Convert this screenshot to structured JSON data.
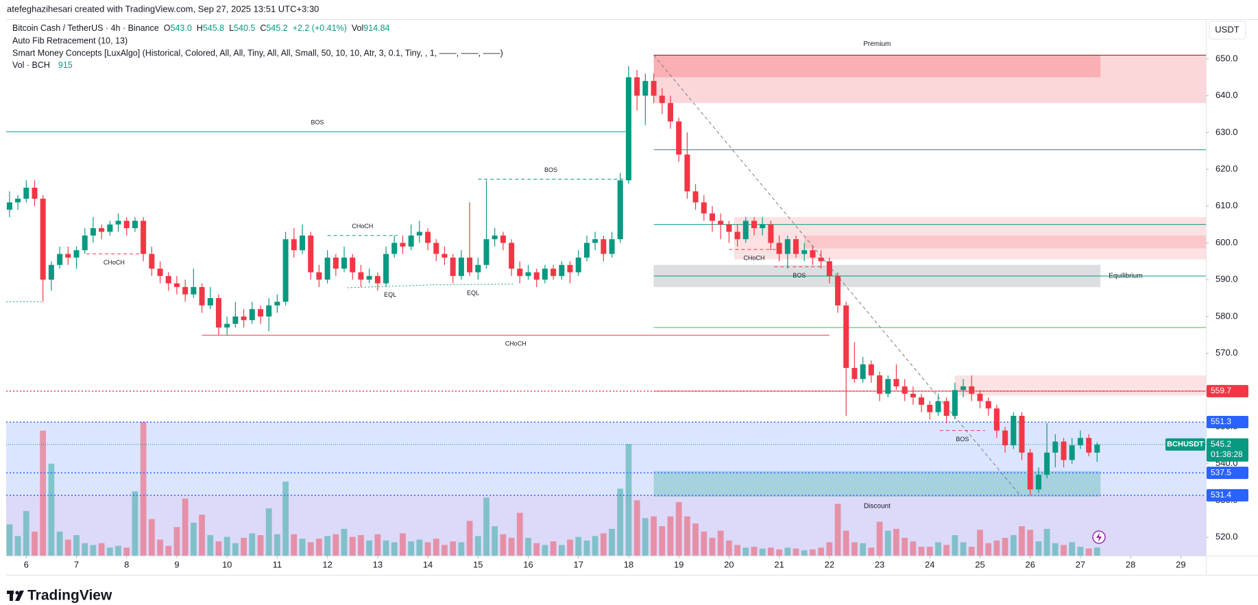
{
  "page": {
    "author_line": "atefeghazihesari created with TradingView.com, Sep 27, 2025 13:51 UTC+3:30",
    "logo": "TradingView"
  },
  "chart_data": {
    "type": "candlestick",
    "title": "Bitcoin Cash / TetherUS · 4h · Binance",
    "legend": [
      {
        "key": "O",
        "value": "543.0"
      },
      {
        "key": "H",
        "value": "545.8"
      },
      {
        "key": "L",
        "value": "540.5"
      },
      {
        "key": "C",
        "value": "545.2"
      }
    ],
    "change": "+2.2 (+0.41%)",
    "vol_legend": {
      "key": "Vol",
      "value": "914.84"
    },
    "indicators": [
      "Auto Fib Retracement (10, 13)",
      "Smart Money Concepts [LuxAlgo] (Historical, Colored, All, All, Tiny, All, All, Small, 50, 10, 10, Atr, 3, 0.1, Tiny, , 1, ——, ——, ——)"
    ],
    "volume_label": "Vol · BCH",
    "volume_value": "915",
    "currency": "USDT",
    "up_color": "#089981",
    "down_color": "#f23645",
    "up_volume_color": "rgba(38,166,154,0.5)",
    "down_volume_color": "rgba(242,54,69,0.45)",
    "xlim": [
      5.6,
      29.5
    ],
    "xticks": [
      6,
      7,
      8,
      9,
      10,
      11,
      12,
      13,
      14,
      15,
      16,
      17,
      18,
      19,
      20,
      21,
      22,
      23,
      24,
      25,
      26,
      27,
      28,
      29
    ],
    "ylim": [
      515,
      660.6
    ],
    "yticks": [
      {
        "value": 520,
        "label": "520.0"
      },
      {
        "value": 530,
        "label": "530.0"
      },
      {
        "value": 540,
        "label": "540.0"
      },
      {
        "value": 550,
        "label": "550.0"
      },
      {
        "value": 560,
        "label": "560.0"
      },
      {
        "value": 570,
        "label": "570.0"
      },
      {
        "value": 580,
        "label": "580.0"
      },
      {
        "value": 590,
        "label": "590.0"
      },
      {
        "value": 600,
        "label": "600.0"
      },
      {
        "value": 610,
        "label": "610.0"
      },
      {
        "value": 620,
        "label": "620.0"
      },
      {
        "value": 630,
        "label": "630.0"
      },
      {
        "value": 640,
        "label": "640.0"
      },
      {
        "value": 650,
        "label": "650.0"
      }
    ],
    "x": [
      5.667,
      5.833,
      6,
      6.167,
      6.333,
      6.5,
      6.667,
      6.833,
      7,
      7.167,
      7.333,
      7.5,
      7.667,
      7.833,
      8,
      8.167,
      8.333,
      8.5,
      8.667,
      8.833,
      9,
      9.167,
      9.333,
      9.5,
      9.667,
      9.833,
      10,
      10.167,
      10.333,
      10.5,
      10.667,
      10.833,
      11,
      11.167,
      11.333,
      11.5,
      11.667,
      11.833,
      12,
      12.167,
      12.333,
      12.5,
      12.667,
      12.833,
      13,
      13.167,
      13.333,
      13.5,
      13.667,
      13.833,
      14,
      14.167,
      14.333,
      14.5,
      14.667,
      14.833,
      15,
      15.167,
      15.333,
      15.5,
      15.667,
      15.833,
      16,
      16.167,
      16.333,
      16.5,
      16.667,
      16.833,
      17,
      17.167,
      17.333,
      17.5,
      17.667,
      17.833,
      18,
      18.167,
      18.333,
      18.5,
      18.667,
      18.833,
      19,
      19.167,
      19.333,
      19.5,
      19.667,
      19.833,
      20,
      20.167,
      20.333,
      20.5,
      20.667,
      20.833,
      21,
      21.167,
      21.333,
      21.5,
      21.667,
      21.833,
      22,
      22.167,
      22.333,
      22.5,
      22.667,
      22.833,
      23,
      23.167,
      23.333,
      23.5,
      23.667,
      23.833,
      24,
      24.167,
      24.333,
      24.5,
      24.667,
      24.833,
      25,
      25.167,
      25.333,
      25.5,
      25.667,
      25.833,
      26,
      26.167,
      26.333,
      26.5,
      26.667,
      26.833,
      27,
      27.167,
      27.333
    ],
    "ohlc": [
      [
        609,
        614,
        607,
        611
      ],
      [
        611,
        613,
        609,
        612
      ],
      [
        612,
        617,
        611,
        615
      ],
      [
        615,
        617,
        610,
        612
      ],
      [
        612,
        613,
        584,
        590
      ],
      [
        590,
        595,
        587,
        594
      ],
      [
        594,
        599,
        593,
        597
      ],
      [
        597,
        599,
        594,
        596
      ],
      [
        596,
        599,
        593,
        598
      ],
      [
        598,
        604,
        597,
        602
      ],
      [
        602,
        607,
        600,
        604
      ],
      [
        604,
        605,
        601,
        603
      ],
      [
        603,
        606,
        602,
        605
      ],
      [
        605,
        608,
        603,
        606
      ],
      [
        606,
        607,
        602,
        604
      ],
      [
        604,
        607,
        603,
        606
      ],
      [
        606,
        607,
        595,
        597
      ],
      [
        597,
        599,
        591,
        593
      ],
      [
        593,
        595,
        589,
        591
      ],
      [
        591,
        592,
        587,
        589
      ],
      [
        589,
        591,
        586,
        588
      ],
      [
        588,
        590,
        584,
        586
      ],
      [
        586,
        593,
        585,
        588
      ],
      [
        588,
        589,
        581,
        583
      ],
      [
        583,
        588,
        582,
        585
      ],
      [
        585,
        586,
        575,
        577
      ],
      [
        577,
        580,
        575,
        578
      ],
      [
        578,
        584,
        577,
        580
      ],
      [
        580,
        582,
        577,
        579
      ],
      [
        579,
        584,
        578,
        582
      ],
      [
        582,
        583,
        578,
        580
      ],
      [
        580,
        585,
        576,
        583
      ],
      [
        583,
        586,
        581,
        584
      ],
      [
        584,
        603,
        583,
        601
      ],
      [
        601,
        604,
        596,
        598
      ],
      [
        598,
        605,
        597,
        602
      ],
      [
        602,
        603,
        590,
        592
      ],
      [
        592,
        594,
        588,
        590
      ],
      [
        590,
        598,
        589,
        596
      ],
      [
        596,
        597,
        591,
        593
      ],
      [
        593,
        599,
        592,
        596
      ],
      [
        596,
        597,
        590,
        592
      ],
      [
        592,
        594,
        588,
        590
      ],
      [
        590,
        593,
        589,
        591
      ],
      [
        591,
        592,
        587,
        589
      ],
      [
        589,
        599,
        588,
        597
      ],
      [
        597,
        602,
        596,
        600
      ],
      [
        600,
        602,
        597,
        599
      ],
      [
        599,
        605,
        598,
        602
      ],
      [
        602,
        606,
        600,
        603
      ],
      [
        603,
        604,
        598,
        600
      ],
      [
        600,
        601,
        595,
        597
      ],
      [
        597,
        599,
        594,
        596
      ],
      [
        596,
        597,
        589,
        591
      ],
      [
        591,
        598,
        590,
        596
      ],
      [
        596,
        611,
        591,
        592
      ],
      [
        592,
        596,
        590,
        594
      ],
      [
        594,
        617,
        593,
        601
      ],
      [
        601,
        604,
        599,
        602
      ],
      [
        602,
        603,
        598,
        600
      ],
      [
        600,
        601,
        591,
        593
      ],
      [
        593,
        595,
        589,
        591
      ],
      [
        591,
        594,
        590,
        592
      ],
      [
        592,
        593,
        588,
        590
      ],
      [
        590,
        594,
        589,
        593
      ],
      [
        593,
        594,
        590,
        591
      ],
      [
        591,
        595,
        590,
        594
      ],
      [
        594,
        595,
        589,
        592
      ],
      [
        592,
        598,
        591,
        596
      ],
      [
        596,
        602,
        595,
        600
      ],
      [
        600,
        603,
        598,
        601
      ],
      [
        601,
        602,
        595,
        597
      ],
      [
        597,
        603,
        596,
        601
      ],
      [
        601,
        619,
        600,
        617
      ],
      [
        617,
        648,
        616,
        645
      ],
      [
        645,
        647,
        636,
        640
      ],
      [
        640,
        646,
        632,
        644
      ],
      [
        644,
        646,
        638,
        640
      ],
      [
        640,
        642,
        635,
        638
      ],
      [
        638,
        640,
        631,
        633
      ],
      [
        633,
        634,
        622,
        624
      ],
      [
        624,
        630,
        612,
        614
      ],
      [
        614,
        616,
        609,
        611
      ],
      [
        611,
        613,
        606,
        608
      ],
      [
        608,
        610,
        603,
        606
      ],
      [
        606,
        608,
        601,
        605
      ],
      [
        605,
        606,
        600,
        603
      ],
      [
        603,
        605,
        599,
        601
      ],
      [
        601,
        607,
        600,
        606
      ],
      [
        606,
        607,
        602,
        604
      ],
      [
        604,
        607,
        602,
        605
      ],
      [
        605,
        606,
        598,
        600
      ],
      [
        600,
        602,
        595,
        597
      ],
      [
        597,
        602,
        593,
        601
      ],
      [
        601,
        602,
        596,
        597
      ],
      [
        597,
        600,
        595,
        598
      ],
      [
        598,
        599,
        594,
        596
      ],
      [
        596,
        598,
        593,
        595
      ],
      [
        595,
        596,
        589,
        591
      ],
      [
        591,
        592,
        581,
        583
      ],
      [
        583,
        584,
        553,
        566
      ],
      [
        566,
        573,
        562,
        563
      ],
      [
        563,
        569,
        562,
        567
      ],
      [
        567,
        568,
        562,
        564
      ],
      [
        564,
        565,
        557,
        559
      ],
      [
        559,
        564,
        558,
        563
      ],
      [
        563,
        567,
        560,
        561
      ],
      [
        561,
        563,
        557,
        559
      ],
      [
        559,
        561,
        556,
        558
      ],
      [
        558,
        559,
        554,
        556
      ],
      [
        556,
        557,
        552,
        554
      ],
      [
        554,
        559,
        553,
        557
      ],
      [
        557,
        558,
        551,
        553
      ],
      [
        553,
        562,
        552,
        560
      ],
      [
        560,
        563,
        558,
        561
      ],
      [
        561,
        564,
        557,
        559
      ],
      [
        559,
        560,
        555,
        557
      ],
      [
        557,
        558,
        553,
        555
      ],
      [
        555,
        556,
        547,
        549
      ],
      [
        549,
        550,
        543,
        545
      ],
      [
        545,
        554,
        544,
        553
      ],
      [
        553,
        554,
        541,
        543
      ],
      [
        543,
        544,
        531.4,
        533
      ],
      [
        533,
        539,
        532,
        537
      ],
      [
        537,
        551,
        536,
        543
      ],
      [
        543,
        548,
        539,
        546
      ],
      [
        546,
        547,
        539,
        541
      ],
      [
        541,
        547,
        540,
        545
      ],
      [
        545,
        549,
        544,
        547
      ],
      [
        547,
        548,
        542,
        543
      ],
      [
        543,
        545.8,
        540.5,
        545.2
      ]
    ],
    "volume": [
      3500,
      2200,
      5000,
      2700,
      14000,
      10300,
      2700,
      1800,
      2300,
      1400,
      1200,
      1400,
      900,
      1100,
      900,
      7200,
      15000,
      4100,
      1800,
      1100,
      3200,
      6400,
      3700,
      4600,
      2300,
      1600,
      2100,
      1400,
      2000,
      2500,
      2300,
      5300,
      2400,
      8300,
      2400,
      1900,
      1500,
      1900,
      2200,
      2400,
      3000,
      2100,
      2300,
      1700,
      2400,
      1700,
      1500,
      2500,
      1600,
      1800,
      1500,
      1900,
      1200,
      1600,
      1500,
      3900,
      2200,
      6500,
      3300,
      2400,
      2000,
      4800,
      2000,
      1400,
      1200,
      1600,
      1200,
      1800,
      2100,
      1700,
      2200,
      2500,
      3000,
      7500,
      12500,
      6200,
      4200,
      4400,
      3300,
      4400,
      6000,
      4400,
      3600,
      2700,
      2000,
      2800,
      1700,
      1200,
      900,
      1000,
      800,
      900,
      700,
      900,
      800,
      600,
      700,
      900,
      1500,
      5800,
      2800,
      1500,
      1400,
      900,
      3800,
      2800,
      3000,
      2000,
      1600,
      1000,
      1000,
      1500,
      1200,
      2300,
      1500,
      1000,
      2900,
      1400,
      1700,
      2000,
      2300,
      3300,
      2900,
      1600,
      3000,
      1400,
      1200,
      1500,
      1000,
      800,
      914.84
    ],
    "price_levels": [
      {
        "value": 559.7,
        "color": "#f23645"
      },
      {
        "value": 551.3,
        "color": "#2962ff",
        "fill": "rgba(41,98,255,0.17)"
      },
      {
        "value": 537.5,
        "color": "#2962ff",
        "fill": "rgba(41,98,255,0.17)"
      },
      {
        "value": 531.4,
        "color": "#2962ff",
        "fill": "rgba(80,70,220,0.2)"
      }
    ],
    "last_price": {
      "symbol": "BCHUSDT",
      "value": 545.2,
      "countdown": "01:38:28",
      "color": "#089981"
    },
    "zones": [
      {
        "y": [
          638,
          651
        ],
        "x": [
          18.5,
          29.5
        ],
        "color": "rgba(242,54,69,0.2)"
      },
      {
        "y": [
          645,
          651
        ],
        "x": [
          18.5,
          27.4
        ],
        "color": "rgba(242,54,69,0.25)",
        "label": "Premium",
        "label_pos": "above",
        "label_color": "#f23645"
      },
      {
        "y": [
          588,
          594
        ],
        "x": [
          18.5,
          27.4
        ],
        "color": "rgba(120,123,134,0.25)",
        "label": "Equilibrium",
        "label_pos": "right",
        "label_color": "#9598a1"
      },
      {
        "y": [
          531,
          538
        ],
        "x": [
          18.5,
          27.4
        ],
        "color": "rgba(8,153,129,0.25)",
        "label": "Discount",
        "label_pos": "below",
        "label_color": "#089981"
      },
      {
        "y": [
          595.5,
          607
        ],
        "x": [
          20.1,
          29.5
        ],
        "color": "rgba(242,54,69,0.15)"
      },
      {
        "y": [
          598.5,
          602
        ],
        "x": [
          21.5,
          29.5
        ],
        "color": "rgba(242,54,69,0.15)"
      },
      {
        "y": [
          558.5,
          564
        ],
        "x": [
          24.5,
          29.5
        ],
        "color": "rgba(242,54,69,0.15)"
      }
    ],
    "lines": [
      {
        "label": "BOS",
        "y": 630.2,
        "x": [
          5.6,
          18
        ],
        "color": "#089981",
        "style": "solid",
        "label_pos": "above"
      },
      {
        "label": "BOS",
        "y": 617.3,
        "x": [
          15,
          17.9
        ],
        "color": "#089981",
        "style": "dashed",
        "label_pos": "above"
      },
      {
        "label": "CHoCH",
        "y": 602,
        "x": [
          12,
          13.4
        ],
        "color": "#089981",
        "style": "dashed",
        "label_pos": "above"
      },
      {
        "label": "CHoCH",
        "y": 597,
        "x": [
          7.2,
          8.3
        ],
        "color": "#f23645",
        "style": "dashed",
        "label_pos": "below"
      },
      {
        "label": "CHoCH",
        "y": 574.9,
        "x": [
          9.5,
          22
        ],
        "color": "#f23645",
        "style": "solid",
        "label_pos": "below"
      },
      {
        "label": "EQL",
        "y": [
          587.8,
          588.6
        ],
        "x": [
          12.4,
          14.1
        ],
        "color": "#089981",
        "style": "dotted",
        "label_pos": "below"
      },
      {
        "label": "EQL",
        "y": [
          588.6,
          588.8
        ],
        "x": [
          14.1,
          15.7
        ],
        "color": "#089981",
        "style": "dotted",
        "label_pos": "below"
      },
      {
        "label": "CHoCH",
        "y": 598.2,
        "x": [
          20,
          21
        ],
        "color": "#f23645",
        "style": "dashed",
        "label_pos": "below"
      },
      {
        "label": "BOS",
        "y": 593.5,
        "x": [
          20.9,
          21.9
        ],
        "color": "#f23645",
        "style": "dashed",
        "label_pos": "below"
      },
      {
        "label": "BOS",
        "y": 549,
        "x": [
          24.2,
          25.1
        ],
        "color": "#f23645",
        "style": "dashed",
        "label_pos": "below"
      },
      {
        "y": 584,
        "x": [
          5.6,
          6.3
        ],
        "color": "#089981",
        "style": "dotted"
      },
      {
        "y": 625.3,
        "x": [
          18.5,
          29.5
        ],
        "color": "#089981",
        "style": "solid"
      },
      {
        "y": 605,
        "x": [
          18.5,
          29.5
        ],
        "color": "#089981",
        "style": "solid"
      },
      {
        "y": 591,
        "x": [
          18.5,
          29.5
        ],
        "color": "#089981",
        "style": "solid"
      },
      {
        "y": 577,
        "x": [
          18.5,
          29.5
        ],
        "color": "#4caf50",
        "style": "solid"
      },
      {
        "y": 559.7,
        "x": [
          18.5,
          29.5
        ],
        "color": "#f23645",
        "style": "solid"
      },
      {
        "y": 651,
        "x": [
          18.5,
          29.5
        ],
        "color": "#8b1a1a",
        "style": "solid"
      },
      {
        "y": [
          651,
          531.4
        ],
        "x": [
          18.5,
          25.8
        ],
        "color": "#787b86",
        "style": "dashed"
      }
    ]
  }
}
